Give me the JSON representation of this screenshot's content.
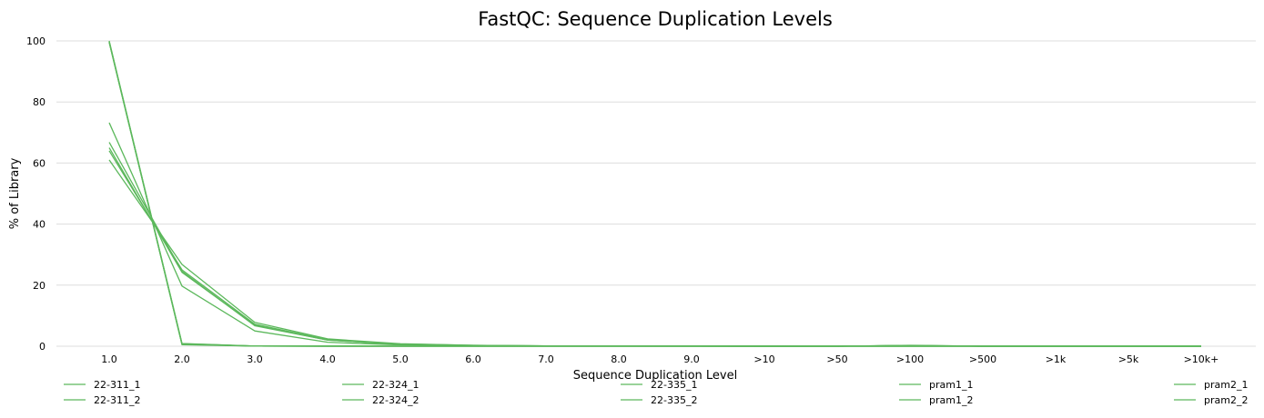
{
  "chart_data": {
    "type": "line",
    "title": "FastQC: Sequence Duplication Levels",
    "xlabel": "Sequence Duplication Level",
    "ylabel": "% of Library",
    "ylim": [
      0,
      100
    ],
    "yticks": [
      0,
      20,
      40,
      60,
      80,
      100
    ],
    "grid": true,
    "legend_position": "bottom",
    "line_color": "#5cb85c",
    "categories": [
      "1.0",
      "2.0",
      "3.0",
      "4.0",
      "5.0",
      "6.0",
      "7.0",
      "8.0",
      "9.0",
      ">10",
      ">50",
      ">100",
      ">500",
      ">1k",
      ">5k",
      ">10k+"
    ],
    "series": [
      {
        "name": "22-311_1",
        "values": [
          99.5,
          0.6,
          0.05,
          0.02,
          0.01,
          0,
          0,
          0,
          0,
          0,
          0,
          0.2,
          0,
          0,
          0,
          0
        ]
      },
      {
        "name": "22-311_2",
        "values": [
          61.0,
          26.8,
          7.8,
          2.4,
          0.8,
          0.3,
          0.1,
          0.05,
          0.03,
          0.02,
          0,
          0,
          0,
          0,
          0,
          0
        ]
      },
      {
        "name": "22-324_1",
        "values": [
          99.8,
          0.5,
          0.05,
          0.02,
          0.01,
          0,
          0,
          0,
          0,
          0,
          0,
          0.2,
          0,
          0,
          0,
          0
        ]
      },
      {
        "name": "22-324_2",
        "values": [
          64.0,
          25.0,
          7.2,
          2.1,
          0.7,
          0.3,
          0.1,
          0.05,
          0.03,
          0.02,
          0,
          0,
          0,
          0,
          0,
          0
        ]
      },
      {
        "name": "22-335_1",
        "values": [
          100.0,
          0.9,
          0.05,
          0.02,
          0.01,
          0,
          0,
          0,
          0,
          0,
          0,
          0.3,
          0,
          0,
          0,
          0
        ]
      },
      {
        "name": "22-335_2",
        "values": [
          66.8,
          24.5,
          6.7,
          2.0,
          0.6,
          0.2,
          0.1,
          0.05,
          0.03,
          0.02,
          0,
          0,
          0,
          0,
          0,
          0
        ]
      },
      {
        "name": "pram1_1",
        "values": [
          99.6,
          0.7,
          0.05,
          0.02,
          0.01,
          0,
          0,
          0,
          0,
          0,
          0,
          0.2,
          0,
          0,
          0,
          0
        ]
      },
      {
        "name": "pram1_2",
        "values": [
          73.2,
          19.7,
          5.0,
          1.3,
          0.4,
          0.15,
          0.05,
          0.03,
          0.02,
          0.01,
          0,
          0,
          0,
          0,
          0,
          0
        ]
      },
      {
        "name": "pram2_1",
        "values": [
          99.7,
          0.8,
          0.05,
          0.02,
          0.01,
          0,
          0,
          0,
          0,
          0,
          0,
          0.25,
          0,
          0,
          0,
          0
        ]
      },
      {
        "name": "pram2_2",
        "values": [
          65.0,
          24.2,
          6.9,
          2.0,
          0.6,
          0.2,
          0.1,
          0.05,
          0.03,
          0.02,
          0,
          0,
          0,
          0,
          0,
          0
        ]
      }
    ]
  }
}
